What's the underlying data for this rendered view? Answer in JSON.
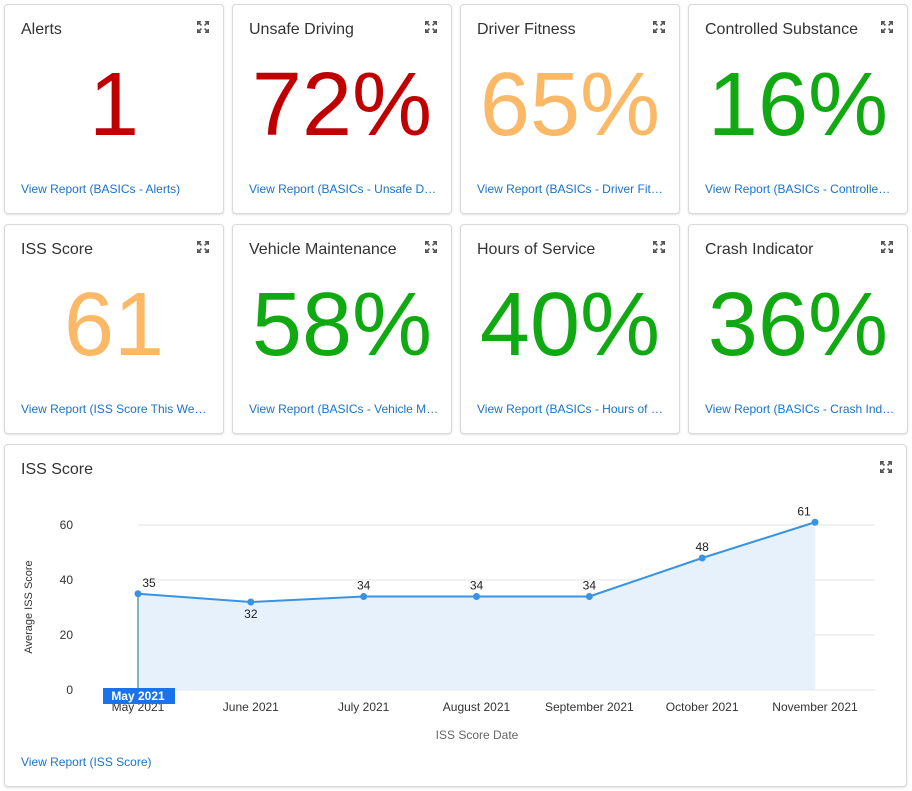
{
  "expand_icon": "expand-arrows-icon",
  "colors": {
    "red": "#c00000",
    "orange": "#fbb866",
    "green": "#11a911",
    "link": "#1a73c8",
    "series": "#3a93e0"
  },
  "kpis": [
    {
      "title": "Alerts",
      "value": "1",
      "status": "red",
      "link": "View Report (BASICs - Alerts)"
    },
    {
      "title": "Unsafe Driving",
      "value": "72%",
      "status": "red",
      "link": "View Report (BASICs - Unsafe Driving)"
    },
    {
      "title": "Driver Fitness",
      "value": "65%",
      "status": "orange",
      "link": "View Report (BASICs - Driver Fitness)"
    },
    {
      "title": "Controlled Substance",
      "value": "16%",
      "status": "green",
      "link": "View Report (BASICs - Controlled Substance)"
    },
    {
      "title": "ISS Score",
      "value": "61",
      "status": "orange",
      "link": "View Report (ISS Score This Week)"
    },
    {
      "title": "Vehicle Maintenance",
      "value": "58%",
      "status": "green",
      "link": "View Report (BASICs - Vehicle Maintenance)"
    },
    {
      "title": "Hours of Service",
      "value": "40%",
      "status": "green",
      "link": "View Report (BASICs - Hours of Service)"
    },
    {
      "title": "Crash Indicator",
      "value": "36%",
      "status": "green",
      "link": "View Report (BASICs - Crash Indicator)"
    }
  ],
  "chart_card": {
    "title": "ISS Score",
    "link": "View Report (ISS Score)"
  },
  "chart_data": {
    "type": "area",
    "categories": [
      "May 2021",
      "June 2021",
      "July 2021",
      "August 2021",
      "September 2021",
      "October 2021",
      "November 2021"
    ],
    "series": [
      {
        "values": [
          35,
          32,
          34,
          34,
          34,
          48,
          61
        ]
      }
    ],
    "data_labels": [
      "35",
      "32",
      "34",
      "34",
      "34",
      "48",
      "61"
    ],
    "xlabel": "ISS Score Date",
    "ylabel": "Average ISS Score",
    "ylim": [
      0,
      60
    ],
    "yticks": [
      "0",
      "20",
      "40",
      "60"
    ],
    "grid": true,
    "crosshair_label": "May 2021"
  }
}
